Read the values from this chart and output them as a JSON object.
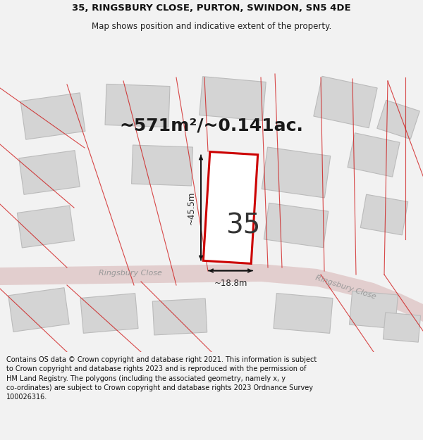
{
  "title_line1": "35, RINGSBURY CLOSE, PURTON, SWINDON, SN5 4DE",
  "title_line2": "Map shows position and indicative extent of the property.",
  "area_text": "~571m²/~0.141ac.",
  "number_text": "35",
  "dim_width": "~18.8m",
  "dim_height": "~45.5m",
  "road_label1": "Ringsbury Close",
  "road_label2": "Ringsbury Close",
  "footer_text": "Contains OS data © Crown copyright and database right 2021. This information is subject to Crown copyright and database rights 2023 and is reproduced with the permission of HM Land Registry. The polygons (including the associated geometry, namely x, y co-ordinates) are subject to Crown copyright and database rights 2023 Ordnance Survey 100026316.",
  "bg_color": "#f2f2f2",
  "map_bg": "#eeecec",
  "plot_fill": "#ffffff",
  "plot_edge": "#cc0000",
  "road_color": "#e0c8c8",
  "building_fill": "#d4d4d4",
  "building_edge": "#bbbbbb",
  "dim_line_color": "#111111",
  "title_fontsize": 9.5,
  "subtitle_fontsize": 8.5,
  "area_fontsize": 18,
  "number_fontsize": 28,
  "footer_fontsize": 7.0
}
